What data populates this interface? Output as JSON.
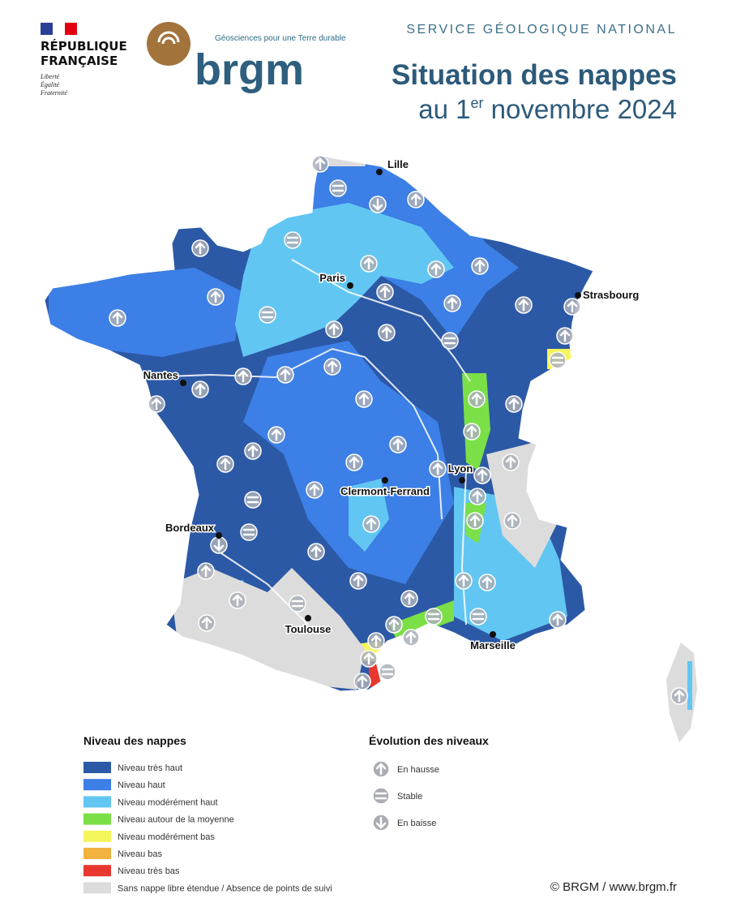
{
  "header": {
    "republic": [
      "RÉPUBLIQUE",
      "FRANÇAISE"
    ],
    "motto": [
      "Liberté",
      "Égalité",
      "Fraternité"
    ],
    "tagline": "Géosciences pour une Terre durable",
    "brand": "brgm",
    "service": "SERVICE GÉOLOGIQUE NATIONAL",
    "title": "Situation des nappes",
    "subtitle": {
      "prefix": "au 1",
      "sup": "er",
      "suffix": " novembre 2024"
    }
  },
  "cities": [
    "Lille",
    "Paris",
    "Strasbourg",
    "Nantes",
    "Lyon",
    "Clermont-Ferrand",
    "Bordeaux",
    "Toulouse",
    "Marseille"
  ],
  "legend": {
    "title": "Niveau des nappes",
    "items": [
      {
        "label": "Niveau très haut",
        "color": "#2c59a6"
      },
      {
        "label": "Niveau haut",
        "color": "#3c7fe6"
      },
      {
        "label": "Niveau modérément haut",
        "color": "#62c6f2"
      },
      {
        "label": "Niveau autour de la moyenne",
        "color": "#7be047"
      },
      {
        "label": "Niveau modérément bas",
        "color": "#f5f55c"
      },
      {
        "label": "Niveau bas",
        "color": "#f2b240"
      },
      {
        "label": "Niveau très bas",
        "color": "#e8372e"
      },
      {
        "label": "Sans nappe libre étendue / Absence de points de suivi",
        "color": "#dcdcdc"
      }
    ]
  },
  "evolution": {
    "title": "Évolution des niveaux",
    "items": [
      "En hausse",
      "Stable",
      "En baisse"
    ]
  },
  "copyright": "© BRGM / www.brgm.fr"
}
